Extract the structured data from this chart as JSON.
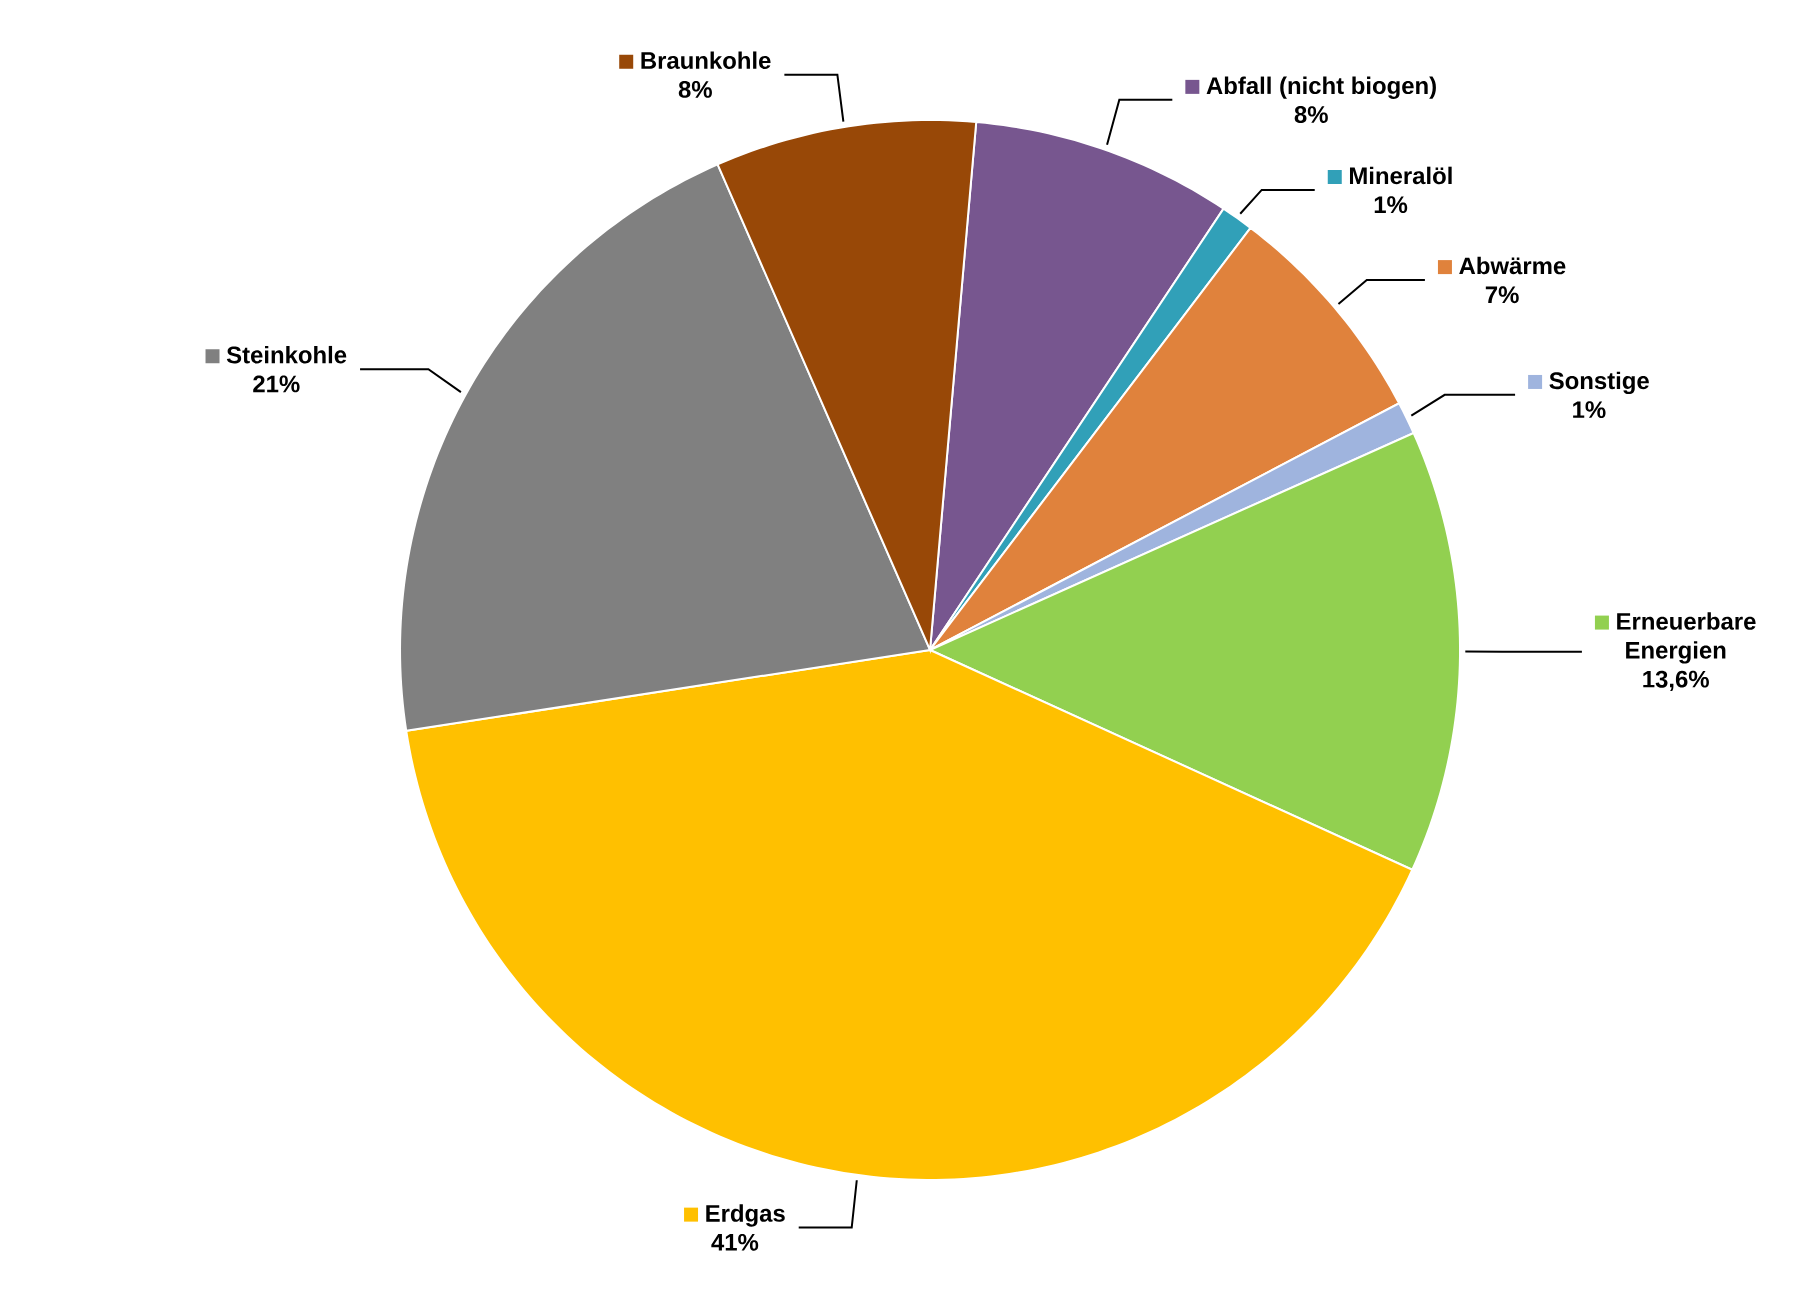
{
  "chart_data": {
    "type": "pie",
    "categories": [
      "Abfall (nicht biogen)",
      "Mineralöl",
      "Abwärme",
      "Sonstige",
      "Erneuerbare Energien",
      "Erdgas",
      "Steinkohle",
      "Braunkohle"
    ],
    "values": [
      8,
      1,
      7,
      1,
      13.6,
      41,
      21,
      8
    ],
    "colors": [
      "#77568f",
      "#31a0b8",
      "#e0823c",
      "#9fb4de",
      "#92d050",
      "#ffc000",
      "#808080",
      "#984807"
    ],
    "value_labels": [
      "8%",
      "1%",
      "7%",
      "1%",
      "13,6%",
      "41%",
      "21%",
      "8%"
    ],
    "legend": "right"
  }
}
